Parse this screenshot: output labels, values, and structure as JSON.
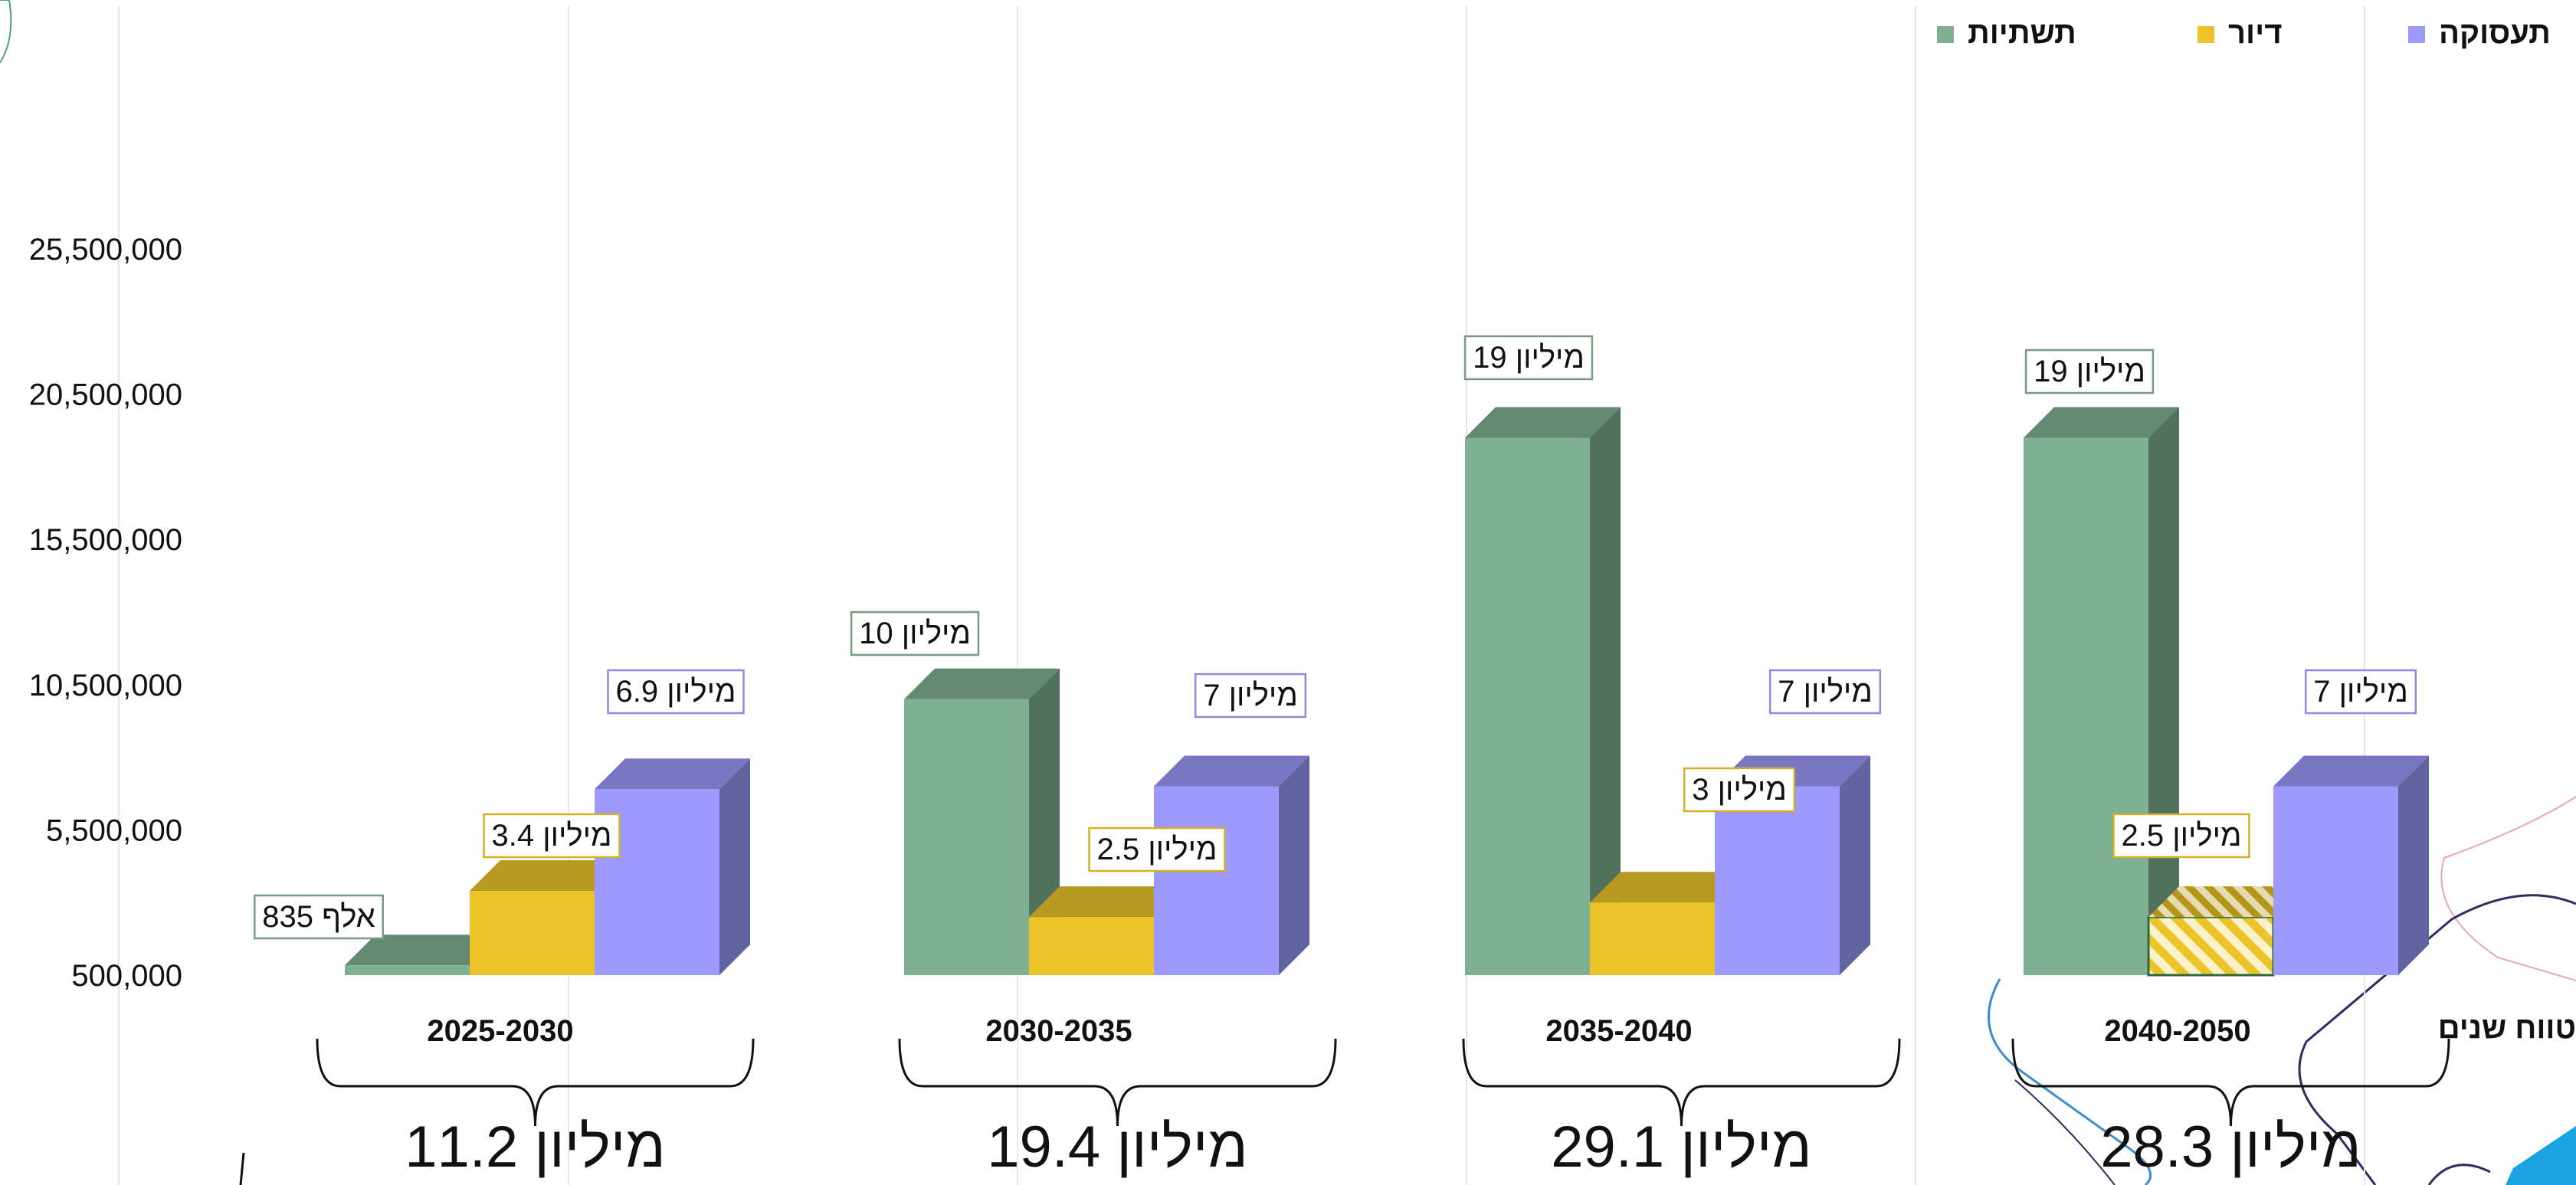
{
  "chart_data": {
    "type": "bar",
    "style": "3d-clustered",
    "categories": [
      "2025-2030",
      "2030-2035",
      "2035-2040",
      "2040-2050"
    ],
    "axis_title": "טווח שנים",
    "yticks": [
      "500,000",
      "5,500,000",
      "10,500,000",
      "15,500,000",
      "20,500,000",
      "25,500,000"
    ],
    "ylim": [
      500000,
      25500000
    ],
    "grid": true,
    "legend_position": "top-right",
    "series": [
      {
        "name": "תשתיות",
        "color": "#80b092",
        "values": [
          835000,
          10000000,
          19000000,
          19000000
        ],
        "labels": [
          "835 אלף",
          "10 מיליון",
          "19 מיליון",
          "19 מיליון"
        ]
      },
      {
        "name": "דיור",
        "color": "#ecc42a",
        "values": [
          3400000,
          2500000,
          3000000,
          2500000
        ],
        "labels": [
          "3.4 מיליון",
          "2.5 מיליון",
          "3 מיליון",
          "2.5 מיליון"
        ]
      },
      {
        "name": "תעסוקה",
        "color": "#9b99fb",
        "values": [
          6900000,
          7000000,
          7000000,
          7000000
        ],
        "labels": [
          "6.9 מיליון",
          "7 מיליון",
          "7 מיליון",
          "7 מיליון"
        ]
      }
    ],
    "totals": [
      "11.2 מיליון",
      "19.4 מיליון",
      "29.1 מיליון",
      "28.3 מיליון"
    ]
  }
}
